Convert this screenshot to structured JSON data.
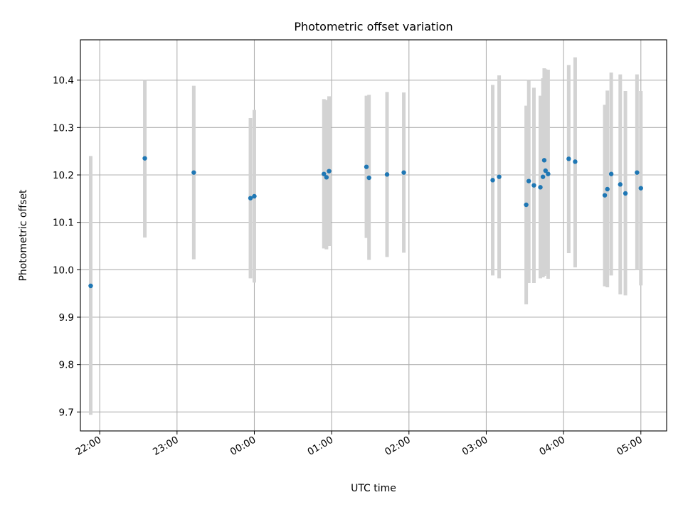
{
  "chart_data": {
    "type": "scatter",
    "title": "Photometric offset variation",
    "xlabel": "UTC time",
    "ylabel": "Photometric offset",
    "x_unit": "UTC time (HH:MM)",
    "xlim": [
      "21:45",
      "05:20"
    ],
    "ylim": [
      9.66,
      10.485
    ],
    "grid": true,
    "legend": "none",
    "x_ticks": [
      "22:00",
      "23:00",
      "00:00",
      "01:00",
      "02:00",
      "03:00",
      "04:00",
      "05:00"
    ],
    "y_ticks": [
      9.7,
      9.8,
      9.9,
      10.0,
      10.1,
      10.2,
      10.3,
      10.4
    ],
    "y_tick_labels": [
      "9.7",
      "9.8",
      "9.9",
      "10.0",
      "10.1",
      "10.2",
      "10.3",
      "10.4"
    ],
    "colors": {
      "marker": "#1f77b4",
      "error_bar": "#d3d3d3",
      "grid": "#b0b0b0"
    },
    "series": [
      {
        "points": [
          {
            "x": "21:53",
            "y": 9.966,
            "lo": 9.694,
            "hi": 10.24
          },
          {
            "x": "22:35",
            "y": 10.235,
            "lo": 10.068,
            "hi": 10.4
          },
          {
            "x": "23:13",
            "y": 10.205,
            "lo": 10.022,
            "hi": 10.388
          },
          {
            "x": "23:57",
            "y": 10.151,
            "lo": 9.982,
            "hi": 10.32
          },
          {
            "x": "00:00",
            "y": 10.155,
            "lo": 9.973,
            "hi": 10.337
          },
          {
            "x": "00:54",
            "y": 10.202,
            "lo": 10.045,
            "hi": 10.36
          },
          {
            "x": "00:56",
            "y": 10.195,
            "lo": 10.043,
            "hi": 10.358
          },
          {
            "x": "00:58",
            "y": 10.208,
            "lo": 10.05,
            "hi": 10.366
          },
          {
            "x": "01:27",
            "y": 10.217,
            "lo": 10.067,
            "hi": 10.367
          },
          {
            "x": "01:29",
            "y": 10.194,
            "lo": 10.021,
            "hi": 10.369
          },
          {
            "x": "01:43",
            "y": 10.201,
            "lo": 10.027,
            "hi": 10.375
          },
          {
            "x": "01:56",
            "y": 10.205,
            "lo": 10.036,
            "hi": 10.374
          },
          {
            "x": "03:05",
            "y": 10.189,
            "lo": 9.988,
            "hi": 10.39
          },
          {
            "x": "03:10",
            "y": 10.196,
            "lo": 9.982,
            "hi": 10.41
          },
          {
            "x": "03:31",
            "y": 10.137,
            "lo": 9.927,
            "hi": 10.346
          },
          {
            "x": "03:33",
            "y": 10.187,
            "lo": 9.972,
            "hi": 10.4
          },
          {
            "x": "03:37",
            "y": 10.178,
            "lo": 9.972,
            "hi": 10.384
          },
          {
            "x": "03:42",
            "y": 10.174,
            "lo": 9.982,
            "hi": 10.367
          },
          {
            "x": "03:44",
            "y": 10.196,
            "lo": 9.984,
            "hi": 10.404
          },
          {
            "x": "03:45",
            "y": 10.231,
            "lo": 9.987,
            "hi": 10.425
          },
          {
            "x": "03:46",
            "y": 10.209,
            "lo": 9.991,
            "hi": 10.423
          },
          {
            "x": "03:48",
            "y": 10.202,
            "lo": 9.981,
            "hi": 10.422
          },
          {
            "x": "04:04",
            "y": 10.234,
            "lo": 10.035,
            "hi": 10.432
          },
          {
            "x": "04:09",
            "y": 10.228,
            "lo": 10.005,
            "hi": 10.448
          },
          {
            "x": "04:32",
            "y": 10.157,
            "lo": 9.965,
            "hi": 10.348
          },
          {
            "x": "04:34",
            "y": 10.17,
            "lo": 9.963,
            "hi": 10.378
          },
          {
            "x": "04:37",
            "y": 10.202,
            "lo": 9.988,
            "hi": 10.416
          },
          {
            "x": "04:44",
            "y": 10.18,
            "lo": 9.948,
            "hi": 10.412
          },
          {
            "x": "04:48",
            "y": 10.161,
            "lo": 9.946,
            "hi": 10.377
          },
          {
            "x": "04:57",
            "y": 10.205,
            "lo": 9.999,
            "hi": 10.412
          },
          {
            "x": "05:00",
            "y": 10.172,
            "lo": 9.967,
            "hi": 10.377
          }
        ]
      }
    ]
  }
}
